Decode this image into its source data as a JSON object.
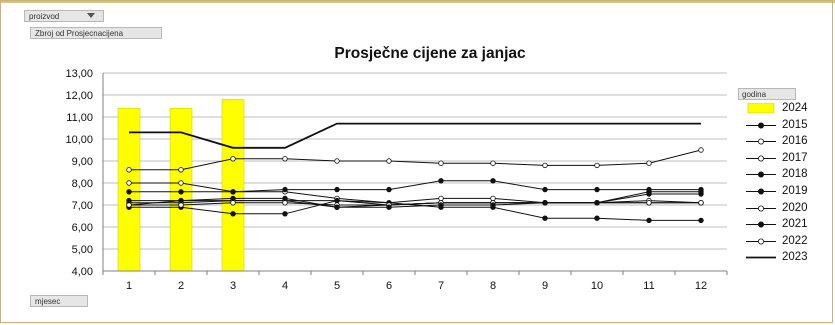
{
  "filters": {
    "page_field": "proizvod",
    "data_field": "Zbroj od Prosjecnacijena",
    "axis_field": "mjesec",
    "legend_field": "godina"
  },
  "chart_data": {
    "type": "bar+line",
    "title": "Prosječne cijene za janjac",
    "categories": [
      "1",
      "2",
      "3",
      "4",
      "5",
      "6",
      "7",
      "8",
      "9",
      "10",
      "11",
      "12"
    ],
    "ylim": [
      4,
      13
    ],
    "yticks": [
      "4,00",
      "5,00",
      "6,00",
      "7,00",
      "8,00",
      "9,00",
      "10,00",
      "11,00",
      "12,00",
      "13,00"
    ],
    "grid": true,
    "legend_position": "right",
    "bar_series": {
      "name": "2024",
      "color": "#ffff00",
      "values": [
        11.4,
        11.4,
        11.8
      ]
    },
    "series": [
      {
        "name": "2015",
        "marker": "filled",
        "values": [
          7.0,
          7.2,
          7.2,
          7.2,
          6.9,
          7.0,
          7.1,
          7.1,
          7.1,
          7.1,
          7.5,
          7.5
        ]
      },
      {
        "name": "2016",
        "marker": "open",
        "values": [
          7.1,
          7.1,
          7.2,
          7.2,
          7.2,
          7.0,
          7.1,
          7.1,
          7.1,
          7.1,
          7.2,
          7.1
        ]
      },
      {
        "name": "2017",
        "marker": "open",
        "values": [
          8.0,
          8.0,
          7.6,
          7.6,
          7.3,
          7.1,
          7.3,
          7.3,
          7.1,
          7.1,
          7.1,
          7.1
        ]
      },
      {
        "name": "2018",
        "marker": "filled",
        "values": [
          7.6,
          7.6,
          7.6,
          7.7,
          7.7,
          7.7,
          8.1,
          8.1,
          7.7,
          7.7,
          7.7,
          7.7
        ]
      },
      {
        "name": "2019",
        "marker": "filled",
        "values": [
          6.9,
          6.9,
          6.6,
          6.6,
          7.2,
          7.1,
          6.9,
          6.9,
          6.4,
          6.4,
          6.3,
          6.3
        ]
      },
      {
        "name": "2020",
        "marker": "open",
        "values": [
          7.0,
          7.0,
          7.1,
          7.1,
          7.0,
          7.0,
          7.1,
          7.1,
          7.1,
          7.1,
          7.1,
          7.1
        ]
      },
      {
        "name": "2021",
        "marker": "filled",
        "values": [
          7.2,
          7.2,
          7.3,
          7.3,
          6.9,
          6.9,
          7.0,
          7.0,
          7.1,
          7.1,
          7.6,
          7.6
        ]
      },
      {
        "name": "2022",
        "marker": "open",
        "values": [
          8.6,
          8.6,
          9.1,
          9.1,
          9.0,
          9.0,
          8.9,
          8.9,
          8.8,
          8.8,
          8.9,
          9.5
        ]
      },
      {
        "name": "2023",
        "marker": "none",
        "values": [
          10.3,
          10.3,
          9.6,
          9.6,
          10.7,
          10.7,
          10.7,
          10.7,
          10.7,
          10.7,
          10.7,
          10.7
        ]
      }
    ]
  }
}
